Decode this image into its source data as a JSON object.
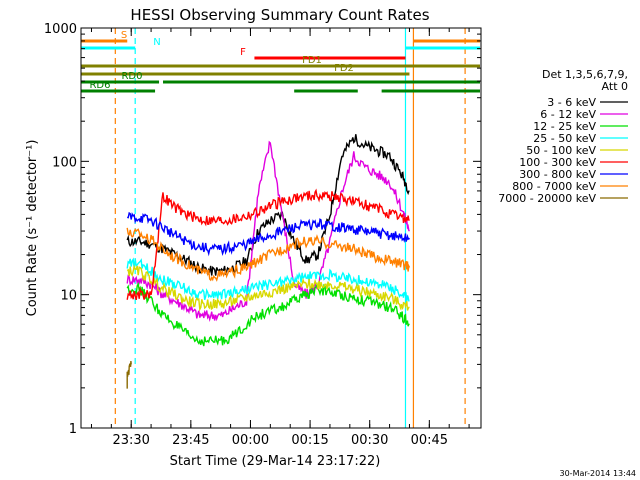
{
  "chart_data": {
    "type": "line",
    "title": "HESSI Observing Summary Count Rates",
    "xlabel": "Start Time (29-Mar-14 23:17:22)",
    "ylabel": "Count Rate (s⁻¹ detector⁻¹)",
    "yscale": "log",
    "ylim": [
      1,
      1000
    ],
    "xlim": [
      "23:17:22",
      "00:58:00"
    ],
    "x_ticks": [
      "23:30",
      "23:45",
      "00:00",
      "00:15",
      "00:30",
      "00:45"
    ],
    "y_ticks": [
      "1",
      "10",
      "100",
      "1000"
    ],
    "timestamp": "30-Mar-2014 13:44",
    "legend": {
      "header": [
        "Det 1,3,5,6,7,9,",
        "Att 0"
      ],
      "placement": "right",
      "entries": [
        {
          "label": "3 - 6 keV",
          "color": "#000000"
        },
        {
          "label": "6 - 12 keV",
          "color": "#e000e0"
        },
        {
          "label": "12 - 25 keV",
          "color": "#00e000"
        },
        {
          "label": "25 - 50 keV",
          "color": "#00ffff"
        },
        {
          "label": "50 - 100 keV",
          "color": "#d8d800"
        },
        {
          "label": "100 - 300 keV",
          "color": "#ff0000"
        },
        {
          "label": "300 - 800 keV",
          "color": "#0000ff"
        },
        {
          "label": "800 - 7000 keV",
          "color": "#ff8000"
        },
        {
          "label": "7000 - 20000 keV",
          "color": "#8a6a00"
        }
      ]
    },
    "flags": [
      {
        "label": "S",
        "color": "#ff8000",
        "segments": [
          [
            "23:17",
            "23:29"
          ],
          [
            "00:41",
            "00:58"
          ]
        ]
      },
      {
        "label": "N",
        "color": "#00ffff",
        "segments": [
          [
            "23:17",
            "23:31"
          ],
          [
            "00:39",
            "00:58"
          ]
        ]
      },
      {
        "label": "F",
        "color": "#ff0000",
        "segments": [
          [
            "00:01",
            "00:39"
          ]
        ]
      },
      {
        "label": "FD1",
        "color": "#808000",
        "segments": [
          [
            "23:17",
            "00:58"
          ]
        ]
      },
      {
        "label": "FD2",
        "color": "#808000",
        "segments": [
          [
            "23:17",
            "00:40"
          ]
        ]
      },
      {
        "label": "RD0",
        "color": "#008000",
        "segments": [
          [
            "23:17",
            "23:37"
          ],
          [
            "23:38",
            "00:58"
          ]
        ]
      },
      {
        "label": "RD6",
        "color": "#008000",
        "segments": [
          [
            "23:17",
            "23:36"
          ],
          [
            "00:11",
            "00:27"
          ],
          [
            "00:33",
            "00:58"
          ]
        ]
      }
    ],
    "vertical_lines": [
      {
        "time": "23:26",
        "color": "#ff8000",
        "style": "dashed"
      },
      {
        "time": "23:31",
        "color": "#00ffff",
        "style": "dashed"
      },
      {
        "time": "00:39",
        "color": "#00ffff",
        "style": "solid"
      },
      {
        "time": "00:41",
        "color": "#ff8000",
        "style": "solid"
      },
      {
        "time": "00:54",
        "color": "#ff8000",
        "style": "dashed"
      }
    ],
    "series": [
      {
        "name": "3 - 6 keV",
        "color": "#000000",
        "x": [
          "23:29",
          "23:32",
          "23:35",
          "23:38",
          "23:41",
          "23:44",
          "23:47",
          "23:50",
          "23:53",
          "23:56",
          "23:59",
          "00:02",
          "00:05",
          "00:08",
          "00:11",
          "00:14",
          "00:17",
          "00:20",
          "00:23",
          "00:26",
          "00:29",
          "00:32",
          "00:35",
          "00:38",
          "00:40"
        ],
        "y": [
          25,
          25,
          24,
          22,
          20,
          18,
          16,
          15,
          15,
          16,
          18,
          30,
          36,
          40,
          25,
          18,
          20,
          40,
          110,
          150,
          130,
          120,
          110,
          80,
          60
        ]
      },
      {
        "name": "6 - 12 keV",
        "color": "#e000e0",
        "x": [
          "23:29",
          "23:32",
          "23:35",
          "23:38",
          "23:41",
          "23:44",
          "23:47",
          "23:50",
          "23:53",
          "23:56",
          "23:59",
          "00:02",
          "00:05",
          "00:08",
          "00:11",
          "00:14",
          "00:17",
          "00:20",
          "00:23",
          "00:26",
          "00:29",
          "00:32",
          "00:35",
          "00:38",
          "00:40"
        ],
        "y": [
          13,
          13,
          12,
          10,
          9,
          8,
          7,
          7,
          7,
          8,
          9,
          60,
          140,
          40,
          12,
          10,
          12,
          25,
          60,
          110,
          90,
          80,
          70,
          45,
          30
        ]
      },
      {
        "name": "12 - 25 keV",
        "color": "#00e000",
        "x": [
          "23:29",
          "23:32",
          "23:35",
          "23:38",
          "23:41",
          "23:44",
          "23:47",
          "23:50",
          "23:53",
          "23:56",
          "23:59",
          "00:02",
          "00:05",
          "00:08",
          "00:11",
          "00:14",
          "00:17",
          "00:20",
          "00:23",
          "00:26",
          "00:29",
          "00:32",
          "00:35",
          "00:38",
          "00:40"
        ],
        "y": [
          11,
          11,
          9,
          7,
          6,
          5,
          4.5,
          4.5,
          4.5,
          5,
          6,
          7,
          7.5,
          8,
          9,
          10,
          11,
          10.5,
          10,
          9.5,
          9,
          8.5,
          8,
          7,
          6
        ]
      },
      {
        "name": "25 - 50 keV",
        "color": "#00ffff",
        "x": [
          "23:29",
          "23:32",
          "23:35",
          "23:38",
          "23:41",
          "23:44",
          "23:47",
          "23:50",
          "23:53",
          "23:56",
          "23:59",
          "00:02",
          "00:05",
          "00:08",
          "00:11",
          "00:14",
          "00:17",
          "00:20",
          "00:23",
          "00:26",
          "00:29",
          "00:32",
          "00:35",
          "00:38",
          "00:40"
        ],
        "y": [
          17,
          17,
          15,
          13,
          12,
          11,
          10,
          10,
          10,
          10.5,
          11,
          11.5,
          12,
          12.5,
          13,
          13.5,
          14,
          14,
          13.5,
          13,
          12.5,
          12,
          11.5,
          10,
          9
        ]
      },
      {
        "name": "50 - 100 keV",
        "color": "#d8d800",
        "x": [
          "23:29",
          "23:32",
          "23:35",
          "23:38",
          "23:41",
          "23:44",
          "23:47",
          "23:50",
          "23:53",
          "23:56",
          "23:59",
          "00:02",
          "00:05",
          "00:08",
          "00:11",
          "00:14",
          "00:17",
          "00:20",
          "00:23",
          "00:26",
          "00:29",
          "00:32",
          "00:35",
          "00:38",
          "00:40"
        ],
        "y": [
          15,
          15,
          13,
          11,
          10,
          9,
          8.5,
          8.5,
          8.5,
          9,
          9.5,
          10,
          10.5,
          11,
          11.5,
          12,
          12,
          12,
          11.5,
          11,
          10.5,
          10,
          9.5,
          8.5,
          8
        ]
      },
      {
        "name": "100 - 300 keV",
        "color": "#ff0000",
        "x": [
          "23:29",
          "23:32",
          "23:35",
          "23:38",
          "23:41",
          "23:44",
          "23:47",
          "23:50",
          "23:53",
          "23:56",
          "23:59",
          "00:02",
          "00:05",
          "00:08",
          "00:11",
          "00:14",
          "00:17",
          "00:20",
          "00:23",
          "00:26",
          "00:29",
          "00:32",
          "00:35",
          "00:38",
          "00:40"
        ],
        "y": [
          10,
          10,
          10,
          55,
          45,
          40,
          37,
          36,
          36,
          37,
          39,
          42,
          46,
          50,
          53,
          55,
          56,
          55,
          53,
          50,
          47,
          44,
          40,
          38,
          36
        ]
      },
      {
        "name": "300 - 800 keV",
        "color": "#0000ff",
        "x": [
          "23:29",
          "23:32",
          "23:35",
          "23:38",
          "23:41",
          "23:44",
          "23:47",
          "23:50",
          "23:53",
          "23:56",
          "23:59",
          "00:02",
          "00:05",
          "00:08",
          "00:11",
          "00:14",
          "00:17",
          "00:20",
          "00:23",
          "00:26",
          "00:29",
          "00:32",
          "00:35",
          "00:38",
          "00:40"
        ],
        "y": [
          38,
          38,
          36,
          32,
          28,
          25,
          23,
          22,
          22,
          23,
          24,
          26,
          28,
          30,
          32,
          33,
          34,
          33,
          32,
          31,
          30,
          29,
          28,
          27,
          26
        ]
      },
      {
        "name": "800 - 7000 keV",
        "color": "#ff8000",
        "x": [
          "23:29",
          "23:32",
          "23:35",
          "23:38",
          "23:41",
          "23:44",
          "23:47",
          "23:50",
          "23:53",
          "23:56",
          "23:59",
          "00:02",
          "00:05",
          "00:08",
          "00:11",
          "00:14",
          "00:17",
          "00:20",
          "00:23",
          "00:26",
          "00:29",
          "00:32",
          "00:35",
          "00:38",
          "00:40"
        ],
        "y": [
          29,
          29,
          26,
          22,
          19,
          17,
          15,
          14,
          14,
          15,
          16,
          18,
          20,
          22,
          24,
          25,
          25,
          24,
          23,
          22,
          20,
          19,
          18,
          17,
          16
        ]
      },
      {
        "name": "7000 - 20000 keV",
        "color": "#8a6a00",
        "x": [
          "23:29",
          "23:29",
          "23:30"
        ],
        "y": [
          2,
          2.5,
          3
        ]
      }
    ]
  }
}
